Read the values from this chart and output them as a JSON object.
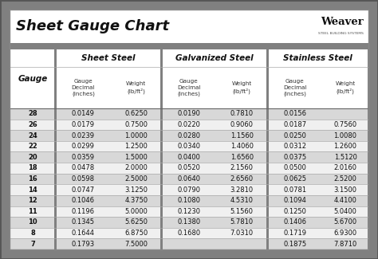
{
  "title": "Sheet Gauge Chart",
  "bg_outer": "#808080",
  "bg_white": "#ffffff",
  "bg_table": "#d8d8d8",
  "bg_row_odd": "#d8d8d8",
  "bg_row_even": "#f0f0f0",
  "col_headers": [
    "Sheet Steel",
    "Galvanized Steel",
    "Stainless Steel"
  ],
  "gauge_col": "Gauge",
  "gauges": [
    28,
    26,
    24,
    22,
    20,
    18,
    16,
    14,
    12,
    11,
    10,
    8,
    7
  ],
  "sheet_steel_decimal": [
    "0.0149",
    "0.0179",
    "0.0239",
    "0.0299",
    "0.0359",
    "0.0478",
    "0.0598",
    "0.0747",
    "0.1046",
    "0.1196",
    "0.1345",
    "0.1644",
    "0.1793"
  ],
  "sheet_steel_weight": [
    "0.6250",
    "0.7500",
    "1.0000",
    "1.2500",
    "1.5000",
    "2.0000",
    "2.5000",
    "3.1250",
    "4.3750",
    "5.0000",
    "5.6250",
    "6.8750",
    "7.5000"
  ],
  "galv_decimal": [
    "0.0190",
    "0.0220",
    "0.0280",
    "0.0340",
    "0.0400",
    "0.0520",
    "0.0640",
    "0.0790",
    "0.1080",
    "0.1230",
    "0.1380",
    "0.1680",
    ""
  ],
  "galv_weight": [
    "0.7810",
    "0.9060",
    "1.1560",
    "1.4060",
    "1.6560",
    "2.1560",
    "2.6560",
    "3.2810",
    "4.5310",
    "5.1560",
    "5.7810",
    "7.0310",
    ""
  ],
  "stainless_decimal": [
    "0.0156",
    "0.0187",
    "0.0250",
    "0.0312",
    "0.0375",
    "0.0500",
    "0.0625",
    "0.0781",
    "0.1094",
    "0.1250",
    "0.1406",
    "0.1719",
    "0.1875"
  ],
  "stainless_weight": [
    "",
    "0.7560",
    "1.0080",
    "1.2600",
    "1.5120",
    "2.0160",
    "2.5200",
    "3.1500",
    "4.4100",
    "5.0400",
    "5.6700",
    "6.9300",
    "7.8710"
  ]
}
